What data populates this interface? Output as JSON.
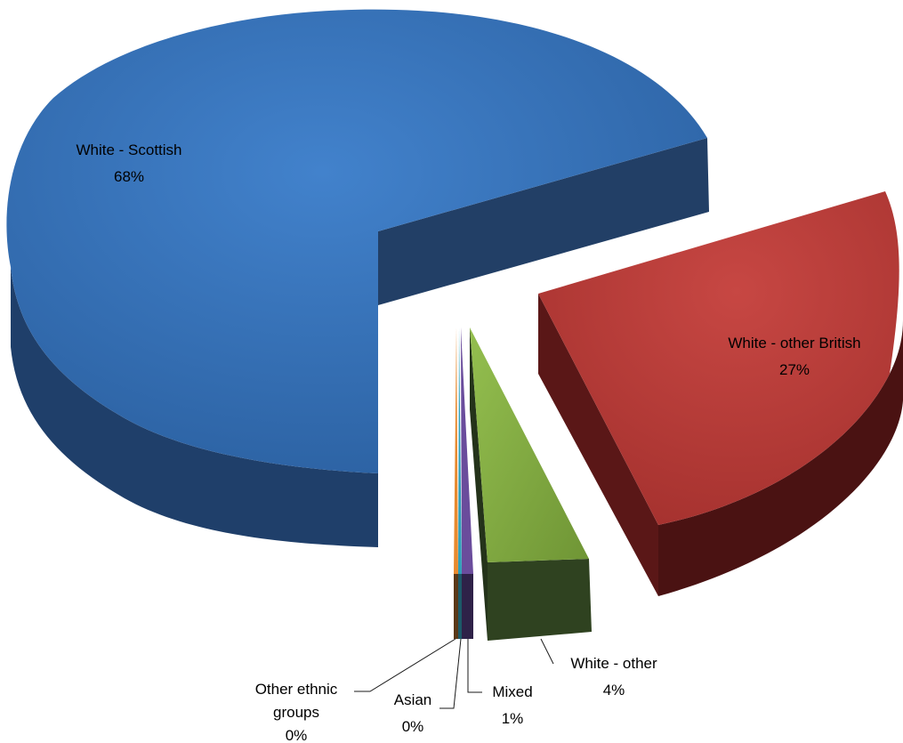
{
  "chart_data": {
    "type": "pie",
    "style": "3d-exploded",
    "title": "",
    "legend": "none",
    "slices": [
      {
        "name": "White - Scottish",
        "value": 68,
        "label": "68%",
        "color": "#2e6bb3"
      },
      {
        "name": "White - other British",
        "value": 27,
        "label": "27%",
        "color": "#b83835"
      },
      {
        "name": "White - other",
        "value": 4,
        "label": "4%",
        "color": "#7fa83d"
      },
      {
        "name": "Mixed",
        "value": 1,
        "label": "1%",
        "color": "#6a4c9c"
      },
      {
        "name": "Asian",
        "value": 0,
        "label": "0%",
        "color": "#2f9fb8"
      },
      {
        "name": "Other ethnic groups",
        "value": 0,
        "label": "0%",
        "color": "#e88a2e"
      }
    ]
  }
}
